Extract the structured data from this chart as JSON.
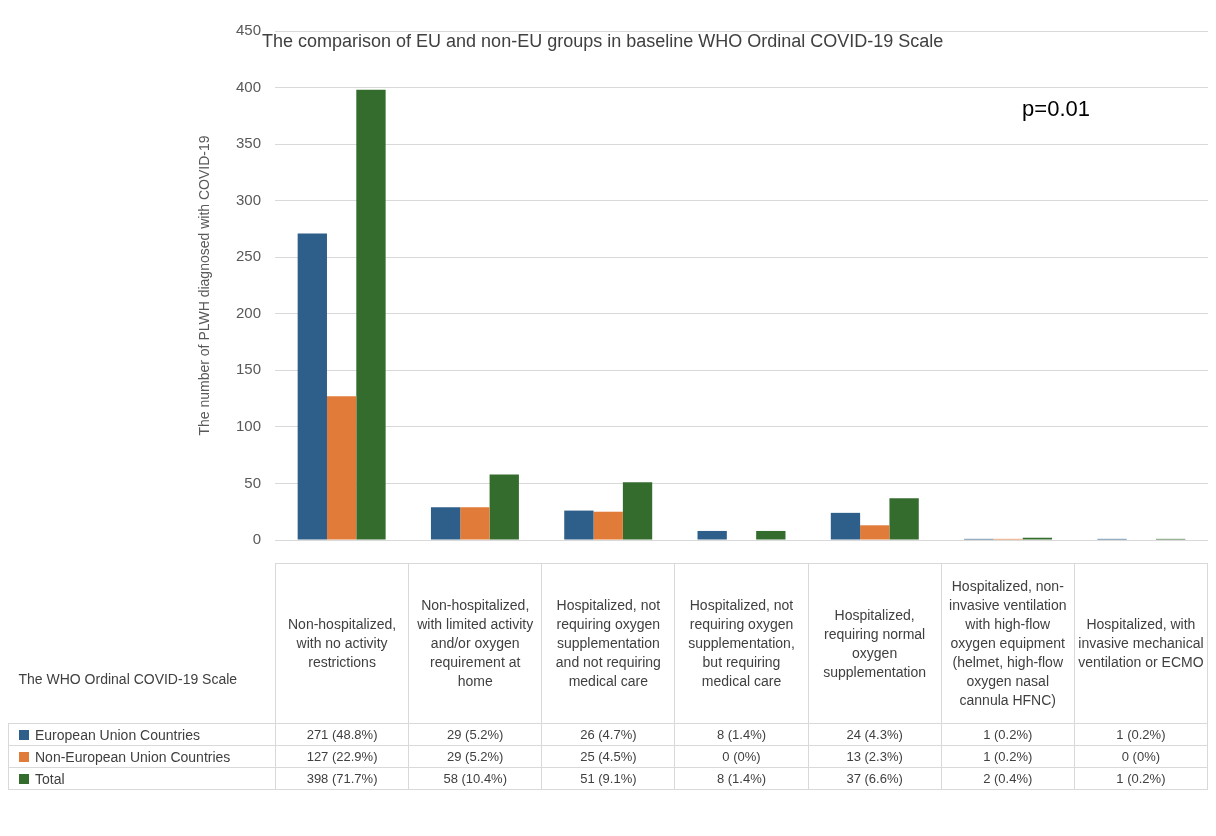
{
  "chart_data": {
    "type": "bar",
    "title": "The comparison of EU and non-EU groups in baseline WHO Ordinal COVID-19 Scale",
    "xlabel": "The WHO Ordinal COVID-19 Scale",
    "ylabel": "The number of PLWH diagnosed with COVID-19",
    "annotations": [
      "p=0.01"
    ],
    "categories": [
      "Non-hospitalized, with no activity restrictions",
      "Non-hospitalized, with limited activity and/or oxygen requirement at home",
      "Hospitalized, not requiring oxygen supplementation and not requiring medical care",
      "Hospitalized, not requiring oxygen supplementation, but requiring medical care",
      "Hospitalized, requiring normal oxygen supplementation",
      "Hospitalized, non-invasive ventilation with high-flow oxygen equipment (helmet, high-flow oxygen nasal cannula HFNC)",
      "Hospitalized, with invasive mechanical ventilation or ECMO"
    ],
    "series": [
      {
        "name": "European Union Countries",
        "color": "#2e5f8a",
        "values": [
          271,
          29,
          26,
          8,
          24,
          1,
          1
        ],
        "value_labels": [
          "271 (48.8%)",
          "29 (5.2%)",
          "26 (4.7%)",
          "8 (1.4%)",
          "24 (4.3%)",
          "1 (0.2%)",
          "1 (0.2%)"
        ]
      },
      {
        "name": "Non-European Union Countries",
        "color": "#e07b39",
        "values": [
          127,
          29,
          25,
          0,
          13,
          1,
          0
        ],
        "value_labels": [
          "127 (22.9%)",
          "29 (5.2%)",
          "25 (4.5%)",
          "0 (0%)",
          "13 (2.3%)",
          "1 (0.2%)",
          "0 (0%)"
        ]
      },
      {
        "name": "Total",
        "color": "#346c2e",
        "values": [
          398,
          58,
          51,
          8,
          37,
          2,
          1
        ],
        "value_labels": [
          "398 (71.7%)",
          "58 (10.4%)",
          "51 (9.1%)",
          "8 (1.4%)",
          "37 (6.6%)",
          "2 (0.4%)",
          "1 (0.2%)"
        ]
      }
    ],
    "ylim": [
      0,
      450
    ],
    "yticks": [
      0,
      50,
      100,
      150,
      200,
      250,
      300,
      350,
      400,
      450
    ],
    "grid": "y",
    "legend": "bottom"
  }
}
